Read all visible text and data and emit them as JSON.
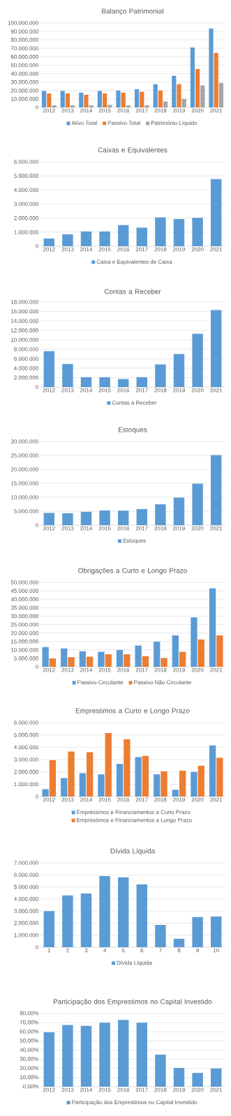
{
  "chart_data": [
    {
      "type": "bar",
      "title": "Balanço Patrimonial",
      "categories": [
        "2012",
        "2013",
        "2014",
        "2015",
        "2016",
        "2017",
        "2018",
        "2019",
        "2020",
        "2021"
      ],
      "series": [
        {
          "name": "Ativo Total",
          "color": "#5b9bd5",
          "values": [
            19500000,
            19500000,
            17500000,
            19500000,
            20000000,
            21500000,
            27500000,
            37500000,
            71000000,
            93500000
          ]
        },
        {
          "name": "Passivo Total",
          "color": "#ed7d31",
          "values": [
            16500000,
            16500000,
            15000000,
            16500000,
            17500000,
            18500000,
            20000000,
            27500000,
            45500000,
            64500000
          ]
        },
        {
          "name": "Patrimônio Líquido",
          "color": "#a5a5a5",
          "values": [
            2500000,
            2500000,
            2500000,
            3000000,
            2500000,
            2500000,
            7000000,
            10000000,
            26000000,
            29000000
          ]
        }
      ],
      "ylim": [
        0,
        100000000
      ],
      "yticks": [
        0,
        {
          "value": 10000000,
          "label": "10.000.000"
        },
        {
          "value": 20000000,
          "label": "20.000.000"
        },
        {
          "value": 30000000,
          "label": "30.000.000"
        },
        {
          "value": 40000000,
          "label": "40.000.000"
        },
        {
          "value": 50000000,
          "label": "50.000.000"
        },
        {
          "value": 60000000,
          "label": "60.000.000"
        },
        {
          "value": 70000000,
          "label": "70.000.000"
        },
        {
          "value": 80000000,
          "label": "80.000.000"
        },
        {
          "value": 90000000,
          "label": "90.000.000"
        },
        {
          "value": 100000000,
          "label": "100.000.000"
        }
      ],
      "grid": "y",
      "legend": "bottom"
    },
    {
      "type": "bar",
      "title": "Caixas e Equivalentes",
      "categories": [
        "2012",
        "2013",
        "2014",
        "2015",
        "2016",
        "2017",
        "2018",
        "2019",
        "2020",
        "2021"
      ],
      "series": [
        {
          "name": "Caixa e Equivalentes de Caixa",
          "color": "#5b9bd5",
          "values": [
            550000,
            850000,
            1050000,
            1050000,
            1500000,
            1320000,
            2050000,
            1930000,
            2020000,
            4770000
          ]
        }
      ],
      "ylim": [
        0,
        6000000
      ],
      "yticks": [
        0,
        {
          "value": 1000000,
          "label": "1.000.000"
        },
        {
          "value": 2000000,
          "label": "2.000.000"
        },
        {
          "value": 3000000,
          "label": "3.000.000"
        },
        {
          "value": 4000000,
          "label": "4.000.000"
        },
        {
          "value": 5000000,
          "label": "5.000.000"
        },
        {
          "value": 6000000,
          "label": "6.000.000"
        }
      ],
      "grid": "y",
      "legend": "bottom"
    },
    {
      "type": "bar",
      "title": "Contas a Receber",
      "categories": [
        "2012",
        "2013",
        "2014",
        "2015",
        "2016",
        "2017",
        "2018",
        "2019",
        "2020",
        "2021"
      ],
      "series": [
        {
          "name": "Contas a Receber",
          "color": "#5b9bd5",
          "values": [
            7600000,
            4900000,
            2100000,
            2100000,
            1700000,
            2100000,
            4800000,
            7000000,
            11300000,
            16300000
          ]
        }
      ],
      "ylim": [
        0,
        18000000
      ],
      "yticks": [
        0,
        {
          "value": 2000000,
          "label": "2.000.000"
        },
        {
          "value": 4000000,
          "label": "4.000.000"
        },
        {
          "value": 6000000,
          "label": "6.000.000"
        },
        {
          "value": 8000000,
          "label": "8.000.000"
        },
        {
          "value": 10000000,
          "label": "10.000.000"
        },
        {
          "value": 12000000,
          "label": "12.000.000"
        },
        {
          "value": 14000000,
          "label": "14.000.000"
        },
        {
          "value": 16000000,
          "label": "16.000.000"
        },
        {
          "value": 18000000,
          "label": "18.000.000"
        }
      ],
      "grid": "y",
      "legend": "bottom"
    },
    {
      "type": "bar",
      "title": "Estoques",
      "categories": [
        "2012",
        "2013",
        "2014",
        "2015",
        "2016",
        "2017",
        "2018",
        "2019",
        "2020",
        "2021"
      ],
      "series": [
        {
          "name": "Estoques",
          "color": "#5b9bd5",
          "values": [
            4400000,
            4300000,
            4800000,
            5300000,
            5200000,
            5800000,
            7500000,
            9900000,
            14900000,
            25100000
          ]
        }
      ],
      "ylim": [
        0,
        30000000
      ],
      "yticks": [
        0,
        {
          "value": 5000000,
          "label": "5.000.000"
        },
        {
          "value": 10000000,
          "label": "10.000.000"
        },
        {
          "value": 15000000,
          "label": "15.000.000"
        },
        {
          "value": 20000000,
          "label": "20.000.000"
        },
        {
          "value": 25000000,
          "label": "25.000.000"
        },
        {
          "value": 30000000,
          "label": "30.000.000"
        }
      ],
      "grid": "y",
      "legend": "bottom"
    },
    {
      "type": "bar",
      "title": "Obrigações a Curto e Longo Prazo",
      "categories": [
        "2012",
        "2013",
        "2014",
        "2015",
        "2016",
        "2017",
        "2018",
        "2019",
        "2020",
        "2021"
      ],
      "series": [
        {
          "name": "Passivo Circulante",
          "color": "#5b9bd5",
          "values": [
            11700000,
            10900000,
            9200000,
            8900000,
            10000000,
            12600000,
            14900000,
            18600000,
            29300000,
            46500000
          ]
        },
        {
          "name": "Passivo Não Circulante",
          "color": "#ed7d31",
          "values": [
            4900000,
            5700000,
            6000000,
            7400000,
            7400000,
            6300000,
            5200000,
            8900000,
            16200000,
            18600000
          ]
        }
      ],
      "ylim": [
        0,
        50000000
      ],
      "yticks": [
        0,
        {
          "value": 5000000,
          "label": "5.000.000"
        },
        {
          "value": 10000000,
          "label": "10.000.000"
        },
        {
          "value": 15000000,
          "label": "15.000.000"
        },
        {
          "value": 20000000,
          "label": "20.000.000"
        },
        {
          "value": 25000000,
          "label": "25.000.000"
        },
        {
          "value": 30000000,
          "label": "30.000.000"
        },
        {
          "value": 35000000,
          "label": "35.000.000"
        },
        {
          "value": 40000000,
          "label": "40.000.000"
        },
        {
          "value": 45000000,
          "label": "45.000.000"
        },
        {
          "value": 50000000,
          "label": "50.000.000"
        }
      ],
      "grid": "y",
      "legend": "bottom"
    },
    {
      "type": "bar",
      "title": "Emprestimos a Curto e Longo Prazo",
      "categories": [
        "2012",
        "2013",
        "2014",
        "2015",
        "2016",
        "2017",
        "2018",
        "2019",
        "2020",
        "2021"
      ],
      "series": [
        {
          "name": "Empréstimos e Financiamentos a Curto Prazo",
          "color": "#5b9bd5",
          "values": [
            600000,
            1500000,
            1900000,
            1800000,
            2650000,
            3200000,
            1800000,
            550000,
            2000000,
            4150000
          ]
        },
        {
          "name": "Empréstimos e Financiamentos a Longo Prazo",
          "color": "#ed7d31",
          "values": [
            2950000,
            3650000,
            3600000,
            5150000,
            4650000,
            3300000,
            2050000,
            2100000,
            2500000,
            3150000
          ]
        }
      ],
      "ylim": [
        0,
        6000000
      ],
      "yticks": [
        0,
        {
          "value": 1000000,
          "label": "1.000.000"
        },
        {
          "value": 2000000,
          "label": "2.000.000"
        },
        {
          "value": 3000000,
          "label": "3.000.000"
        },
        {
          "value": 4000000,
          "label": "4.000.000"
        },
        {
          "value": 5000000,
          "label": "5.000.000"
        },
        {
          "value": 6000000,
          "label": "6.000.000"
        }
      ],
      "grid": "y",
      "legend": "bottom"
    },
    {
      "type": "bar",
      "title": "Dívida Líquida",
      "categories": [
        "1",
        "2",
        "3",
        "4",
        "5",
        "6",
        "7",
        "8",
        "9",
        "10"
      ],
      "series": [
        {
          "name": "Dívida Líquida",
          "color": "#5b9bd5",
          "values": [
            3000000,
            4300000,
            4450000,
            5900000,
            5800000,
            5200000,
            1850000,
            700000,
            2500000,
            2550000
          ]
        }
      ],
      "ylim": [
        0,
        7000000
      ],
      "yticks": [
        0,
        {
          "value": 1000000,
          "label": "1.000.000"
        },
        {
          "value": 2000000,
          "label": "2.000.000"
        },
        {
          "value": 3000000,
          "label": "3.000.000"
        },
        {
          "value": 4000000,
          "label": "4.000.000"
        },
        {
          "value": 5000000,
          "label": "5.000.000"
        },
        {
          "value": 6000000,
          "label": "6.000.000"
        },
        {
          "value": 7000000,
          "label": "7.000.000"
        }
      ],
      "grid": "y",
      "legend": "bottom"
    },
    {
      "type": "bar",
      "title": "Participação dos Emprestimos no Capital Investido",
      "categories": [
        "2012",
        "2013",
        "2014",
        "2015",
        "2016",
        "2017",
        "2018",
        "2019",
        "2020",
        "2021"
      ],
      "series": [
        {
          "name": "Participação dos Emprestimos no Capital Investido",
          "color": "#5b9bd5",
          "values": [
            59.5,
            67.5,
            66.5,
            70,
            73,
            70,
            35,
            20.5,
            15,
            20
          ]
        }
      ],
      "ylim": [
        0,
        80
      ],
      "yticks": [
        {
          "value": 0,
          "label": "0,00%"
        },
        {
          "value": 10,
          "label": "10,00%"
        },
        {
          "value": 20,
          "label": "20,00%"
        },
        {
          "value": 30,
          "label": "30,00%"
        },
        {
          "value": 40,
          "label": "40,00%"
        },
        {
          "value": 50,
          "label": "50,00%"
        },
        {
          "value": 60,
          "label": "60,00%"
        },
        {
          "value": 70,
          "label": "70,00%"
        },
        {
          "value": 80,
          "label": "80,00%"
        }
      ],
      "grid": "y",
      "legend": "bottom"
    }
  ]
}
